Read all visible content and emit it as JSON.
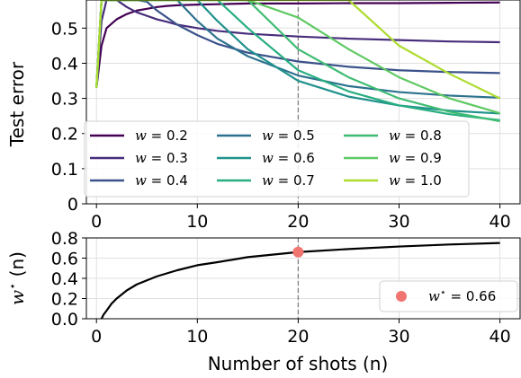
{
  "chart_data": [
    {
      "type": "line",
      "title": "",
      "xlabel": "",
      "ylabel": "Test error",
      "xlim": [
        -1,
        42
      ],
      "ylim": [
        0,
        0.58
      ],
      "xticks": [
        "0",
        "10",
        "20",
        "30",
        "40"
      ],
      "yticks": [
        "0",
        "0.1",
        "0.2",
        "0.3",
        "0.4",
        "0.5"
      ],
      "grid": true,
      "legend_position": "lower-left",
      "vline_x": 20,
      "x": [
        0,
        0.5,
        1,
        2,
        3,
        4,
        5,
        6,
        7,
        8,
        10,
        12,
        15,
        20,
        25,
        30,
        35,
        40
      ],
      "series": [
        {
          "name": "w = 0.2",
          "color": "#440154",
          "values": [
            0.33,
            0.45,
            0.5,
            0.525,
            0.54,
            0.55,
            0.555,
            0.56,
            0.563,
            0.565,
            0.567,
            0.568,
            0.57,
            0.57,
            0.571,
            0.571,
            0.572,
            0.573
          ]
        },
        {
          "name": "w = 0.3",
          "color": "#472d7b",
          "values": [
            0.33,
            0.52,
            0.58,
            0.58,
            0.56,
            0.545,
            0.535,
            0.525,
            0.518,
            0.51,
            0.5,
            0.492,
            0.484,
            0.476,
            0.47,
            0.466,
            0.462,
            0.46
          ]
        },
        {
          "name": "w = 0.4",
          "color": "#3b528b",
          "values": [
            0.33,
            0.58,
            0.58,
            0.58,
            0.58,
            0.58,
            0.575,
            0.55,
            0.53,
            0.51,
            0.48,
            0.455,
            0.43,
            0.405,
            0.39,
            0.38,
            0.375,
            0.372
          ]
        },
        {
          "name": "w = 0.5",
          "color": "#2c728e",
          "values": [
            0.33,
            0.58,
            0.58,
            0.58,
            0.58,
            0.58,
            0.58,
            0.58,
            0.58,
            0.58,
            0.52,
            0.47,
            0.42,
            0.365,
            0.335,
            0.318,
            0.308,
            0.302
          ]
        },
        {
          "name": "w = 0.6",
          "color": "#21918c",
          "values": [
            0.33,
            0.58,
            0.58,
            0.58,
            0.58,
            0.58,
            0.58,
            0.58,
            0.58,
            0.58,
            0.58,
            0.52,
            0.44,
            0.35,
            0.305,
            0.28,
            0.265,
            0.257
          ]
        },
        {
          "name": "w = 0.7",
          "color": "#28ae80",
          "values": [
            0.33,
            0.58,
            0.58,
            0.58,
            0.58,
            0.58,
            0.58,
            0.58,
            0.58,
            0.58,
            0.58,
            0.58,
            0.5,
            0.38,
            0.32,
            0.28,
            0.255,
            0.238
          ]
        },
        {
          "name": "w = 0.8",
          "color": "#3fbc73",
          "values": [
            0.33,
            0.58,
            0.58,
            0.58,
            0.58,
            0.58,
            0.58,
            0.58,
            0.58,
            0.58,
            0.58,
            0.58,
            0.58,
            0.44,
            0.36,
            0.3,
            0.262,
            0.235
          ]
        },
        {
          "name": "w = 0.9",
          "color": "#5ec962",
          "values": [
            0.33,
            0.58,
            0.58,
            0.58,
            0.58,
            0.58,
            0.58,
            0.58,
            0.58,
            0.58,
            0.58,
            0.58,
            0.58,
            0.53,
            0.44,
            0.36,
            0.3,
            0.258
          ]
        },
        {
          "name": "w = 1.0",
          "color": "#addc30",
          "values": [
            0.33,
            0.58,
            0.58,
            0.58,
            0.58,
            0.58,
            0.58,
            0.58,
            0.58,
            0.58,
            0.58,
            0.58,
            0.58,
            0.58,
            0.58,
            0.45,
            0.37,
            0.3
          ]
        }
      ]
    },
    {
      "type": "line",
      "title": "",
      "xlabel": "Number of shots (n)",
      "ylabel": "w* (n)",
      "xlim": [
        -1,
        42
      ],
      "ylim": [
        0,
        0.8
      ],
      "xticks": [
        "0",
        "10",
        "20",
        "30",
        "40"
      ],
      "yticks": [
        "0.0",
        "0.2",
        "0.4",
        "0.6",
        "0.8"
      ],
      "grid": true,
      "legend_position": "lower-right",
      "vline_x": 20,
      "x": [
        0.5,
        0.7,
        1,
        1.5,
        2,
        3,
        4,
        5,
        6,
        8,
        10,
        12,
        15,
        20,
        25,
        30,
        35,
        40
      ],
      "series": [
        {
          "name": "",
          "color": "#000000",
          "values": [
            0.0,
            0.04,
            0.08,
            0.15,
            0.2,
            0.28,
            0.34,
            0.38,
            0.42,
            0.48,
            0.53,
            0.56,
            0.61,
            0.66,
            0.69,
            0.715,
            0.735,
            0.75
          ]
        }
      ],
      "marker": {
        "x": 20,
        "y": 0.66,
        "color": "#f07470",
        "label": "w* = 0.66"
      }
    }
  ],
  "labels": {
    "top_ylabel": "Test error",
    "bottom_ylabel_base": "w",
    "bottom_ylabel_sup": "⋆",
    "bottom_ylabel_rest": " (n)",
    "xlabel": "Number of shots (n)",
    "marker_legend_base": "w",
    "marker_legend_sup": "⋆",
    "marker_legend_rest": " = 0.66"
  }
}
